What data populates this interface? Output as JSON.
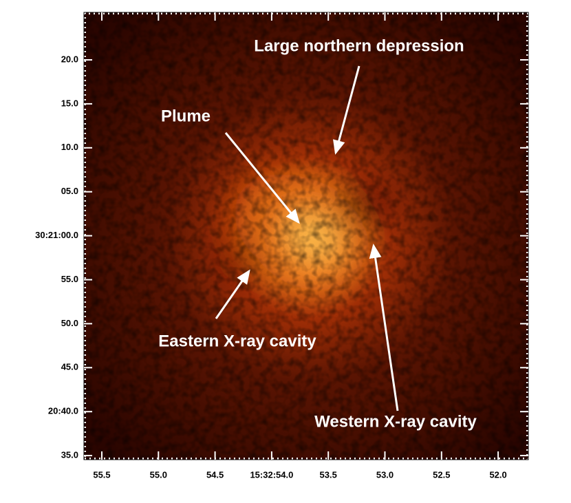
{
  "figure": {
    "yticks": [
      "20.0",
      "15.0",
      "10.0",
      "05.0",
      "30:21:00.0",
      "55.0",
      "50.0",
      "45.0",
      "20:40.0",
      "35.0"
    ],
    "xticks": [
      "55.5",
      "55.0",
      "54.5",
      "15:32:54.0",
      "53.5",
      "53.0",
      "52.5",
      "52.0"
    ],
    "annotations": [
      "Large northern depression",
      "Plume",
      "Eastern X-ray cavity",
      "Western X-ray cavity"
    ]
  }
}
